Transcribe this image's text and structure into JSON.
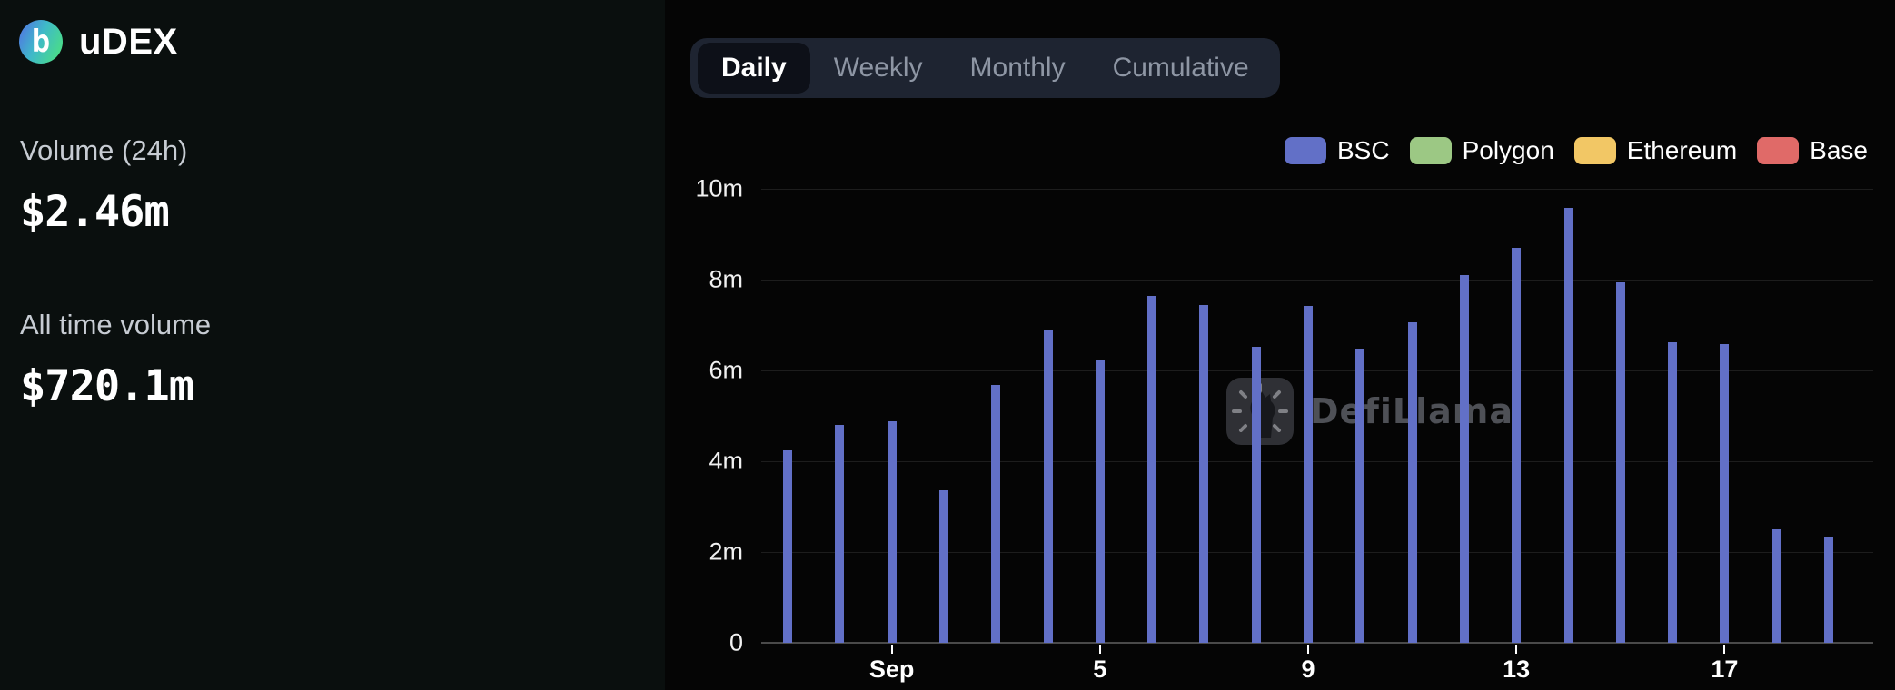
{
  "app": {
    "name": "uDEX",
    "logo_letter": "b"
  },
  "sidebar": {
    "stats": [
      {
        "label": "Volume (24h)",
        "value": "$2.46m"
      },
      {
        "label": "All time volume",
        "value": "$720.1m"
      }
    ]
  },
  "tabs": {
    "items": [
      "Daily",
      "Weekly",
      "Monthly",
      "Cumulative"
    ],
    "active_index": 0
  },
  "legend": [
    {
      "name": "BSC",
      "color": "#6270c7"
    },
    {
      "name": "Polygon",
      "color": "#9cc884"
    },
    {
      "name": "Ethereum",
      "color": "#f2c765"
    },
    {
      "name": "Base",
      "color": "#e06a68"
    }
  ],
  "watermark": {
    "text": "DefiLlama"
  },
  "chart_data": {
    "type": "bar",
    "x": [
      "Aug 30",
      "Aug 31",
      "Sep 1",
      "Sep 2",
      "Sep 3",
      "Sep 4",
      "Sep 5",
      "Sep 6",
      "Sep 7",
      "Sep 8",
      "Sep 9",
      "Sep 10",
      "Sep 11",
      "Sep 12",
      "Sep 13",
      "Sep 14",
      "Sep 15",
      "Sep 16",
      "Sep 17",
      "Sep 18",
      "Sep 19"
    ],
    "series": [
      {
        "name": "BSC",
        "color": "#6270c7",
        "values": [
          4.24,
          4.8,
          4.87,
          3.36,
          5.68,
          6.9,
          6.24,
          7.64,
          7.44,
          6.52,
          7.42,
          6.47,
          7.05,
          8.09,
          8.7,
          9.58,
          7.93,
          6.61,
          6.58,
          2.49,
          2.32
        ]
      }
    ],
    "unit_suffix": "m",
    "ylim": [
      0,
      10
    ],
    "y_ticks": [
      {
        "value": 10,
        "label": "10m"
      },
      {
        "value": 8,
        "label": "8m"
      },
      {
        "value": 6,
        "label": "6m"
      },
      {
        "value": 4,
        "label": "4m"
      },
      {
        "value": 2,
        "label": "2m"
      },
      {
        "value": 0,
        "label": "0"
      }
    ],
    "x_axis_ticks": [
      {
        "index": 2,
        "label": "Sep"
      },
      {
        "index": 6,
        "label": "5"
      },
      {
        "index": 10,
        "label": "9"
      },
      {
        "index": 14,
        "label": "13"
      },
      {
        "index": 18,
        "label": "17"
      }
    ],
    "grid": "horizontal",
    "legend_position": "top-right"
  }
}
